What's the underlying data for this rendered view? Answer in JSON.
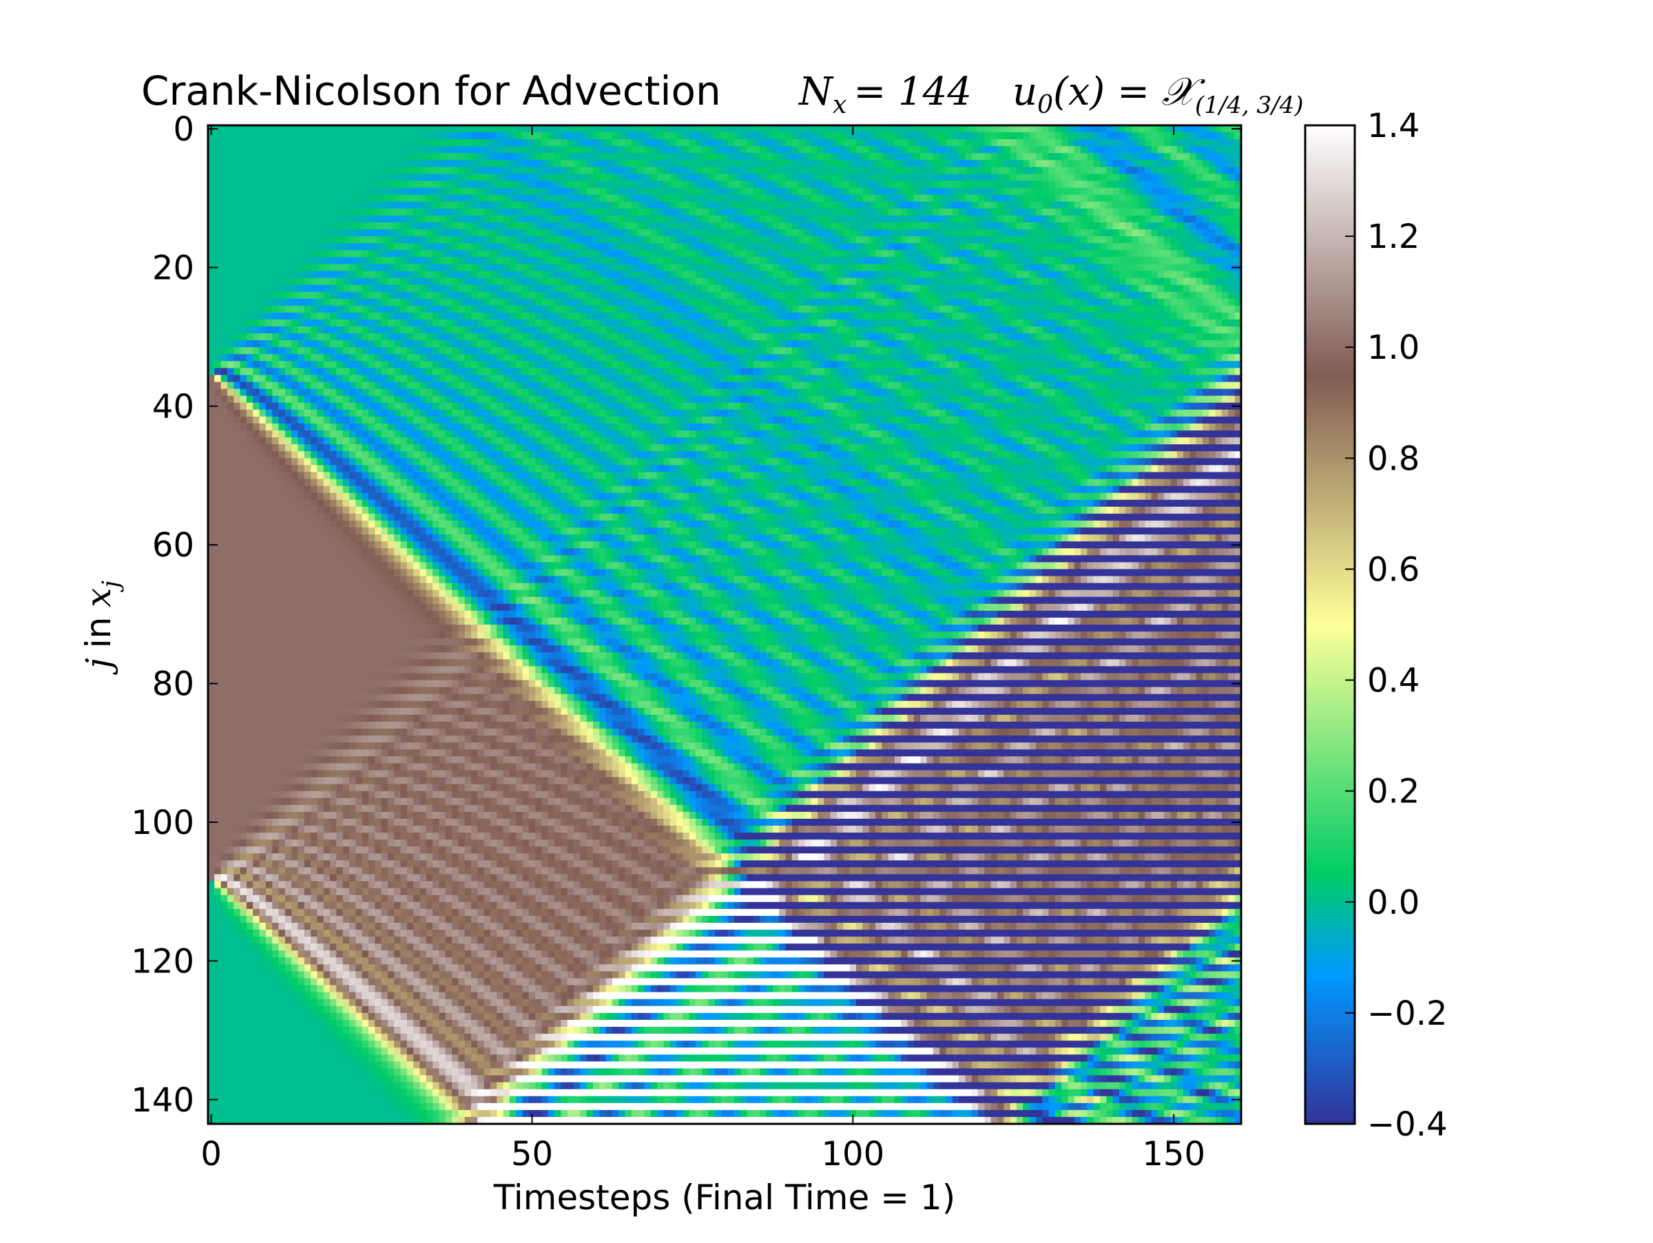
{
  "chart_data": {
    "type": "heatmap",
    "title": "Crank-Nicolson for Advection",
    "title_param_left": "N",
    "title_param_left_sub": "x",
    "title_param_left_value": "= 144",
    "title_param_right": "u",
    "title_param_right_sub": "0",
    "title_param_right_rest": "(x) = 𝒳",
    "title_param_right_interval": "(1/4, 3/4)",
    "xlabel": "Timesteps (Final Time = 1)",
    "ylabel_var": "j",
    "ylabel_in": "in",
    "ylabel_x": "x",
    "ylabel_x_sub": "j",
    "x_range": [
      0,
      160
    ],
    "y_range": [
      0,
      143
    ],
    "y_inverted": true,
    "x_ticks": [
      0,
      50,
      100,
      150
    ],
    "y_ticks": [
      0,
      20,
      40,
      60,
      80,
      100,
      120,
      140
    ],
    "grid": false,
    "colormap": "terrain",
    "colorbar": {
      "vmin": -0.4,
      "vmax": 1.4,
      "ticks": [
        -0.4,
        -0.2,
        0.0,
        0.2,
        0.4,
        0.6,
        0.8,
        1.0,
        1.2,
        1.4
      ],
      "tick_labels": [
        "−0.4",
        "−0.2",
        "0.0",
        "0.2",
        "0.4",
        "0.6",
        "0.8",
        "1.0",
        "1.2",
        "1.4"
      ]
    },
    "model": {
      "nx": 144,
      "nt": 161,
      "initial_condition_interval": [
        0.25,
        0.75
      ],
      "advection_speed": 1,
      "final_time": 1
    }
  }
}
